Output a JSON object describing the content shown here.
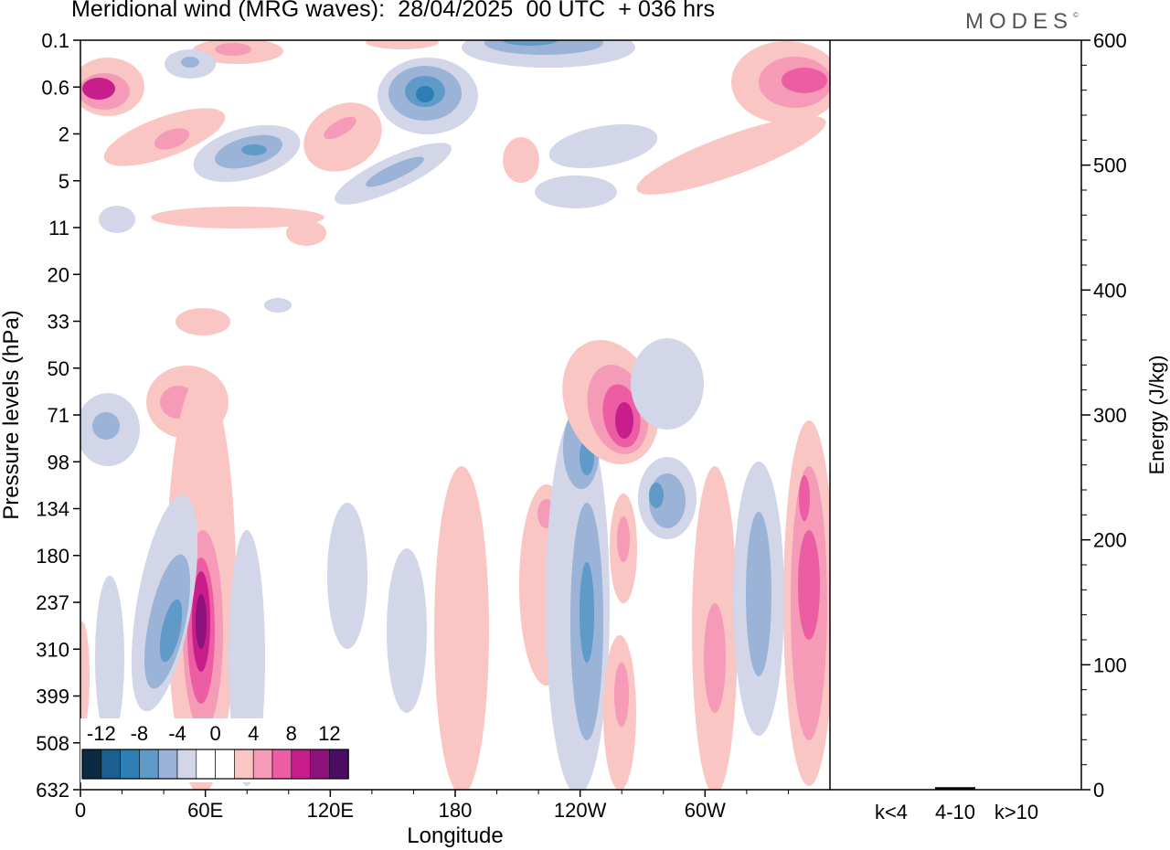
{
  "title": "Meridional wind (MRG waves):  28/04/2025  00 UTC  + 036 hrs",
  "logo": "MODES",
  "colors": {
    "neg": [
      "#0d2a44",
      "#1b5f8f",
      "#2e7eb6",
      "#5f9ac9",
      "#9ab3d6",
      "#d2d6e8"
    ],
    "zero": "#ffffff",
    "pos": [
      "#f9c6c4",
      "#f59ab7",
      "#ec5da4",
      "#c81e8b",
      "#8e127c",
      "#4b0d63"
    ]
  },
  "chart_data": [
    {
      "type": "heatmap",
      "title": "Meridional wind (MRG waves):  28/04/2025  00 UTC  + 036 hrs",
      "xlabel": "Longitude",
      "ylabel": "Pressure levels (hPa)",
      "x_ticks": [
        "0",
        "60E",
        "120E",
        "180",
        "120W",
        "60W"
      ],
      "y_ticks": [
        "0.1",
        "0.6",
        "2",
        "5",
        "11",
        "20",
        "33",
        "50",
        "71",
        "98",
        "134",
        "180",
        "237",
        "310",
        "399",
        "508",
        "632"
      ],
      "colorbar": {
        "labels": [
          "-12",
          "-8",
          "-4",
          "0",
          "4",
          "8",
          "12"
        ],
        "levels": [
          -14,
          -12,
          -10,
          -8,
          -6,
          -4,
          -2,
          2,
          4,
          6,
          8,
          10,
          12,
          14
        ]
      },
      "features": [
        {
          "lon": 10,
          "lev": "0.6",
          "sign": "pos",
          "mag": 12
        },
        {
          "lon": 60,
          "lev": "237",
          "sign": "pos",
          "mag": 12
        },
        {
          "lon": 42,
          "lev": "271",
          "sign": "neg",
          "mag": 6
        },
        {
          "lon": 165,
          "lev": "0.6",
          "sign": "neg",
          "mag": 8
        },
        {
          "lon": 85,
          "lev": "3",
          "sign": "neg",
          "mag": 6
        },
        {
          "lon": -103,
          "lev": "71",
          "sign": "pos",
          "mag": 12
        },
        {
          "lon": -120,
          "lev": "237",
          "sign": "neg",
          "mag": 8
        },
        {
          "lon": -80,
          "lev": "134",
          "sign": "neg",
          "mag": 6
        },
        {
          "lon": -10,
          "lev": "237",
          "sign": "pos",
          "mag": 10
        },
        {
          "lon": -30,
          "lev": "180",
          "sign": "neg",
          "mag": 4
        }
      ]
    },
    {
      "type": "bar",
      "categories": [
        "k<4",
        "4-10",
        "k>10"
      ],
      "values": [
        0,
        2,
        0
      ],
      "ylabel": "Energy (J/kg)",
      "ylim": [
        0,
        600
      ],
      "y_ticks": [
        "0",
        "100",
        "200",
        "300",
        "400",
        "500",
        "600"
      ]
    }
  ]
}
